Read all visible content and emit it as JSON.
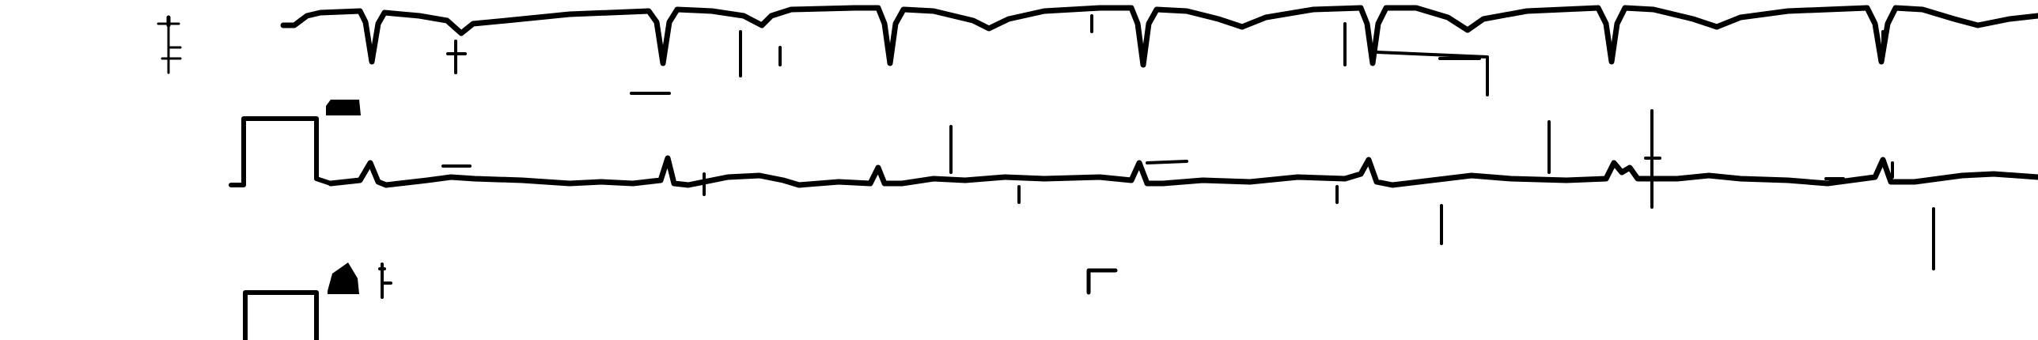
{
  "colors": {
    "background": "#ffffff",
    "trace": "#000000"
  },
  "strip": {
    "type": "ecg-printout",
    "leads": [
      {
        "id": "lead-1",
        "label": "",
        "morphology": "deep-negative-qrs",
        "beat_count": 8
      },
      {
        "id": "lead-2",
        "label": "",
        "morphology": "small-positive-qrs",
        "beat_count": 8
      },
      {
        "id": "lead-3",
        "label": "",
        "morphology": "calibration-only",
        "beat_count": 0
      }
    ]
  }
}
